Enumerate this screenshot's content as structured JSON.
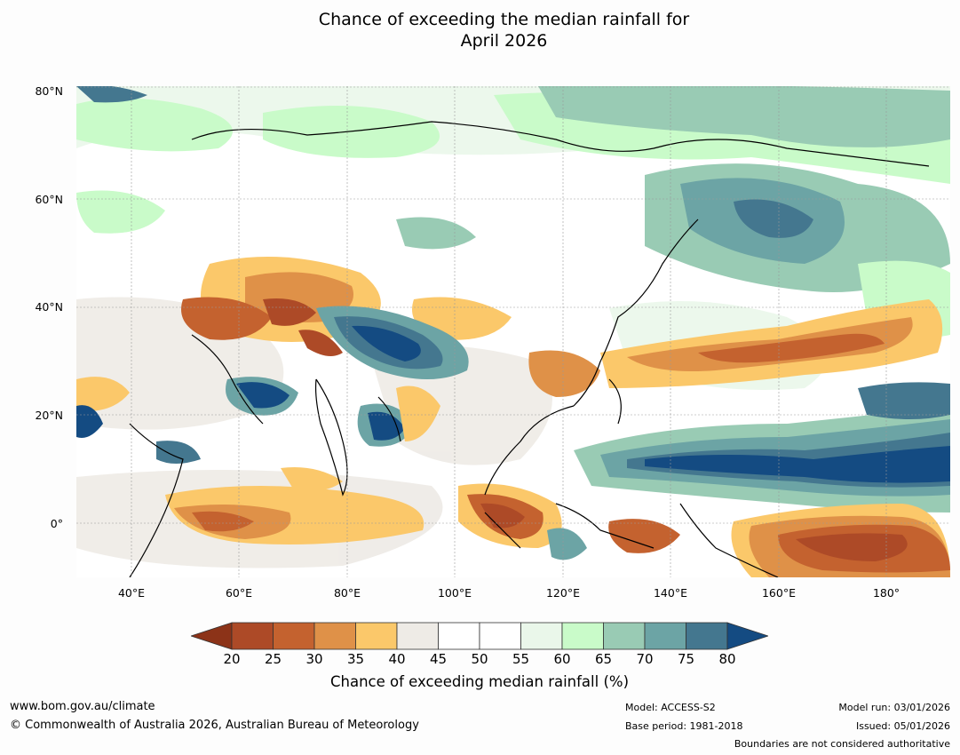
{
  "title": {
    "line1": "Chance of exceeding the median rainfall for",
    "line2": "April 2026"
  },
  "map": {
    "lat_labels": [
      "80°N",
      "60°N",
      "40°N",
      "20°N",
      "0°"
    ],
    "lon_labels": [
      "40°E",
      "60°E",
      "80°E",
      "100°E",
      "120°E",
      "140°E",
      "160°E",
      "180°"
    ],
    "lat_range": [
      -10,
      80
    ],
    "lon_range": [
      30,
      192
    ]
  },
  "colorbar": {
    "ticks": [
      "20",
      "25",
      "30",
      "35",
      "40",
      "45",
      "50",
      "55",
      "60",
      "65",
      "70",
      "75",
      "80"
    ],
    "colors": [
      "#ad4a27",
      "#c4622f",
      "#df9148",
      "#fbc86a",
      "#eeebe6",
      "#ffffff",
      "#ffffff",
      "#eaf7ea",
      "#c9fbc9",
      "#99cbb4",
      "#6ca4a5",
      "#44778f"
    ],
    "low_extend_color": "#8c3318",
    "high_extend_color": "#144b82",
    "label": "Chance of exceeding median rainfall (%)"
  },
  "footer": {
    "website": "www.bom.gov.au/climate",
    "copyright": "© Commonwealth of Australia 2026, Australian Bureau of Meteorology",
    "model": "Model: ACCESS-S2",
    "base_period": "Base period: 1981-2018",
    "model_run": "Model run: 03/01/2026",
    "issued": "Issued: 05/01/2026",
    "boundaries_note": "Boundaries are not considered authoritative"
  }
}
